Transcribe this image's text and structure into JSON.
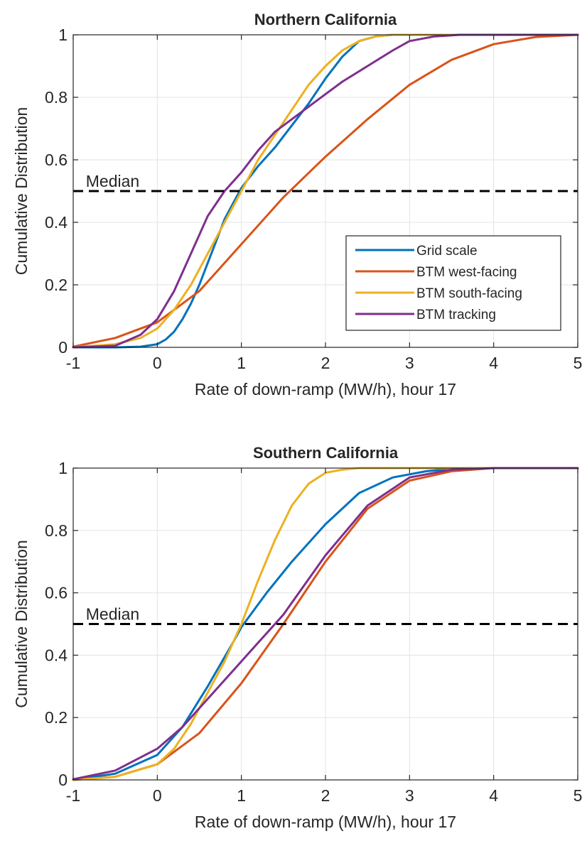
{
  "chart_data": [
    {
      "type": "line",
      "title": "Northern California",
      "xlabel": "Rate of down-ramp (MW/h), hour 17",
      "ylabel": "Cumulative Distribution",
      "xlim": [
        -1,
        5
      ],
      "ylim": [
        0,
        1
      ],
      "xticks": [
        -1,
        0,
        1,
        2,
        3,
        4,
        5
      ],
      "yticks": [
        0,
        0.2,
        0.4,
        0.6,
        0.8,
        1
      ],
      "xtick_labels": [
        "-1",
        "0",
        "1",
        "2",
        "3",
        "4",
        "5"
      ],
      "ytick_labels": [
        "0",
        "0.2",
        "0.4",
        "0.6",
        "0.8",
        "1"
      ],
      "grid": true,
      "legend_position": "lower-right",
      "annotation": {
        "text": "Median",
        "x": -0.85,
        "y": 0.5
      },
      "reference_line": {
        "y": 0.5,
        "style": "dashed",
        "color": "#000000"
      },
      "series": [
        {
          "name": "Grid scale",
          "color": "#0072BD",
          "x": [
            -1,
            -0.5,
            -0.2,
            0,
            0.1,
            0.2,
            0.3,
            0.4,
            0.5,
            0.6,
            0.7,
            0.8,
            0.9,
            1.0,
            1.2,
            1.4,
            1.6,
            1.8,
            2.0,
            2.2,
            2.4,
            2.6,
            2.8,
            3.0,
            5
          ],
          "y": [
            0,
            0,
            0.002,
            0.01,
            0.025,
            0.05,
            0.09,
            0.14,
            0.2,
            0.27,
            0.34,
            0.41,
            0.46,
            0.51,
            0.58,
            0.64,
            0.71,
            0.78,
            0.86,
            0.93,
            0.98,
            0.995,
            1.0,
            1.0,
            1.0
          ]
        },
        {
          "name": "BTM west-facing",
          "color": "#D95319",
          "x": [
            -1,
            -0.5,
            0,
            0.5,
            1.0,
            1.5,
            2.0,
            2.5,
            3.0,
            3.5,
            4.0,
            4.5,
            5
          ],
          "y": [
            0.002,
            0.03,
            0.08,
            0.18,
            0.33,
            0.48,
            0.61,
            0.73,
            0.84,
            0.92,
            0.97,
            0.993,
            1.0
          ]
        },
        {
          "name": "BTM south-facing",
          "color": "#EDB120",
          "x": [
            -1,
            -0.5,
            -0.2,
            0,
            0.2,
            0.4,
            0.6,
            0.8,
            1.0,
            1.2,
            1.4,
            1.6,
            1.8,
            2.0,
            2.2,
            2.4,
            2.6,
            2.8,
            3.0,
            5
          ],
          "y": [
            0,
            0.01,
            0.03,
            0.06,
            0.12,
            0.2,
            0.3,
            0.4,
            0.5,
            0.6,
            0.68,
            0.76,
            0.84,
            0.9,
            0.95,
            0.98,
            0.995,
            1.0,
            1.0,
            1.0
          ]
        },
        {
          "name": "BTM tracking",
          "color": "#7E2F8E",
          "x": [
            -1,
            -0.5,
            -0.2,
            0,
            0.2,
            0.4,
            0.6,
            0.8,
            1.0,
            1.2,
            1.4,
            1.6,
            1.8,
            2.0,
            2.2,
            2.5,
            2.8,
            3.0,
            3.3,
            3.6,
            4.0,
            5
          ],
          "y": [
            0,
            0.005,
            0.04,
            0.09,
            0.18,
            0.3,
            0.42,
            0.5,
            0.56,
            0.63,
            0.69,
            0.73,
            0.77,
            0.81,
            0.85,
            0.9,
            0.95,
            0.98,
            0.995,
            1.0,
            1.0,
            1.0
          ]
        }
      ]
    },
    {
      "type": "line",
      "title": "Southern California",
      "xlabel": "Rate of down-ramp (MW/h), hour 17",
      "ylabel": "Cumulative Distribution",
      "xlim": [
        -1,
        5
      ],
      "ylim": [
        0,
        1
      ],
      "xticks": [
        -1,
        0,
        1,
        2,
        3,
        4,
        5
      ],
      "yticks": [
        0,
        0.2,
        0.4,
        0.6,
        0.8,
        1
      ],
      "xtick_labels": [
        "-1",
        "0",
        "1",
        "2",
        "3",
        "4",
        "5"
      ],
      "ytick_labels": [
        "0",
        "0.2",
        "0.4",
        "0.6",
        "0.8",
        "1"
      ],
      "grid": true,
      "annotation": {
        "text": "Median",
        "x": -0.85,
        "y": 0.5
      },
      "reference_line": {
        "y": 0.5,
        "style": "dashed",
        "color": "#000000"
      },
      "series": [
        {
          "name": "Grid scale",
          "color": "#0072BD",
          "x": [
            -1,
            -0.5,
            0,
            0.3,
            0.6,
            0.9,
            1.0,
            1.3,
            1.6,
            2.0,
            2.4,
            2.8,
            3.2,
            3.6,
            4.0,
            5
          ],
          "y": [
            0,
            0.02,
            0.08,
            0.17,
            0.3,
            0.44,
            0.49,
            0.6,
            0.7,
            0.82,
            0.92,
            0.97,
            0.99,
            1.0,
            1.0,
            1.0
          ]
        },
        {
          "name": "BTM west-facing",
          "color": "#D95319",
          "x": [
            -1,
            -0.5,
            0,
            0.5,
            1.0,
            1.5,
            2.0,
            2.5,
            3.0,
            3.5,
            4.0,
            5
          ],
          "y": [
            0,
            0.01,
            0.05,
            0.15,
            0.31,
            0.5,
            0.7,
            0.87,
            0.96,
            0.99,
            1.0,
            1.0
          ]
        },
        {
          "name": "BTM south-facing",
          "color": "#EDB120",
          "x": [
            -1,
            -0.5,
            0,
            0.2,
            0.4,
            0.6,
            0.8,
            1.0,
            1.2,
            1.4,
            1.6,
            1.8,
            2.0,
            2.2,
            2.4,
            3.0,
            5
          ],
          "y": [
            0,
            0.01,
            0.05,
            0.1,
            0.18,
            0.28,
            0.38,
            0.5,
            0.64,
            0.77,
            0.88,
            0.95,
            0.985,
            0.995,
            1.0,
            1.0,
            1.0
          ]
        },
        {
          "name": "BTM tracking",
          "color": "#7E2F8E",
          "x": [
            -1,
            -0.5,
            0,
            0.3,
            0.6,
            0.9,
            1.2,
            1.5,
            2.0,
            2.5,
            3.0,
            3.5,
            4.0,
            5
          ],
          "y": [
            0.002,
            0.03,
            0.1,
            0.17,
            0.26,
            0.35,
            0.44,
            0.53,
            0.72,
            0.88,
            0.97,
            0.995,
            1.0,
            1.0
          ]
        }
      ]
    }
  ]
}
